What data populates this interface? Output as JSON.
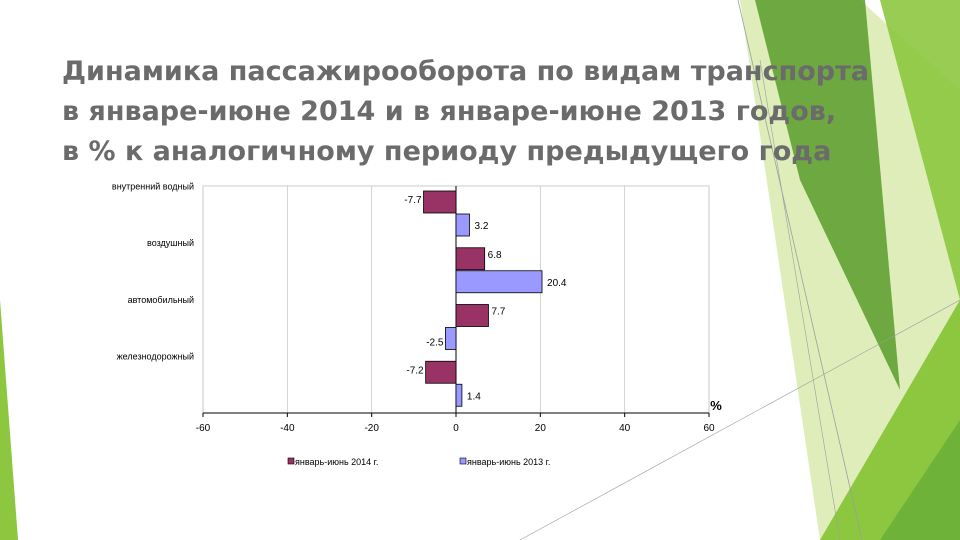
{
  "title_lines": [
    "Динамика пассажирооборота по видам транспорта",
    "в январе-июне 2014 и в январе-июне 2013 годов,",
    "в % к аналогичному периоду предыдущего года"
  ],
  "colors": {
    "title": "#6b6b6b",
    "series_2014": "#993366",
    "series_2013": "#9999ff",
    "deco_green_light": "#d6e9a9",
    "deco_green": "#8dc63f",
    "deco_green_dark": "#5a9b2a"
  },
  "chart_data": {
    "type": "bar",
    "orientation": "horizontal",
    "categories": [
      "внутренний водный",
      "воздушный",
      "автомобильный",
      "железнодорожный"
    ],
    "series": [
      {
        "name": "январь-июнь 2014 г.",
        "values": [
          -7.7,
          6.8,
          7.7,
          -7.2
        ],
        "labels": [
          "-7.7",
          "6.8",
          "7.7",
          "-7.2"
        ]
      },
      {
        "name": "январь-июнь 2013 г.",
        "values": [
          3.2,
          20.4,
          -2.5,
          1.4
        ],
        "labels": [
          "3.2",
          "20.4",
          "-2.5",
          "1.4"
        ]
      }
    ],
    "xlim": [
      -60,
      60
    ],
    "xticks": [
      "-60",
      "-40",
      "-20",
      "0",
      "20",
      "40",
      "60"
    ],
    "unit_label": "%",
    "grid": "vertical",
    "legend": "bottom"
  }
}
